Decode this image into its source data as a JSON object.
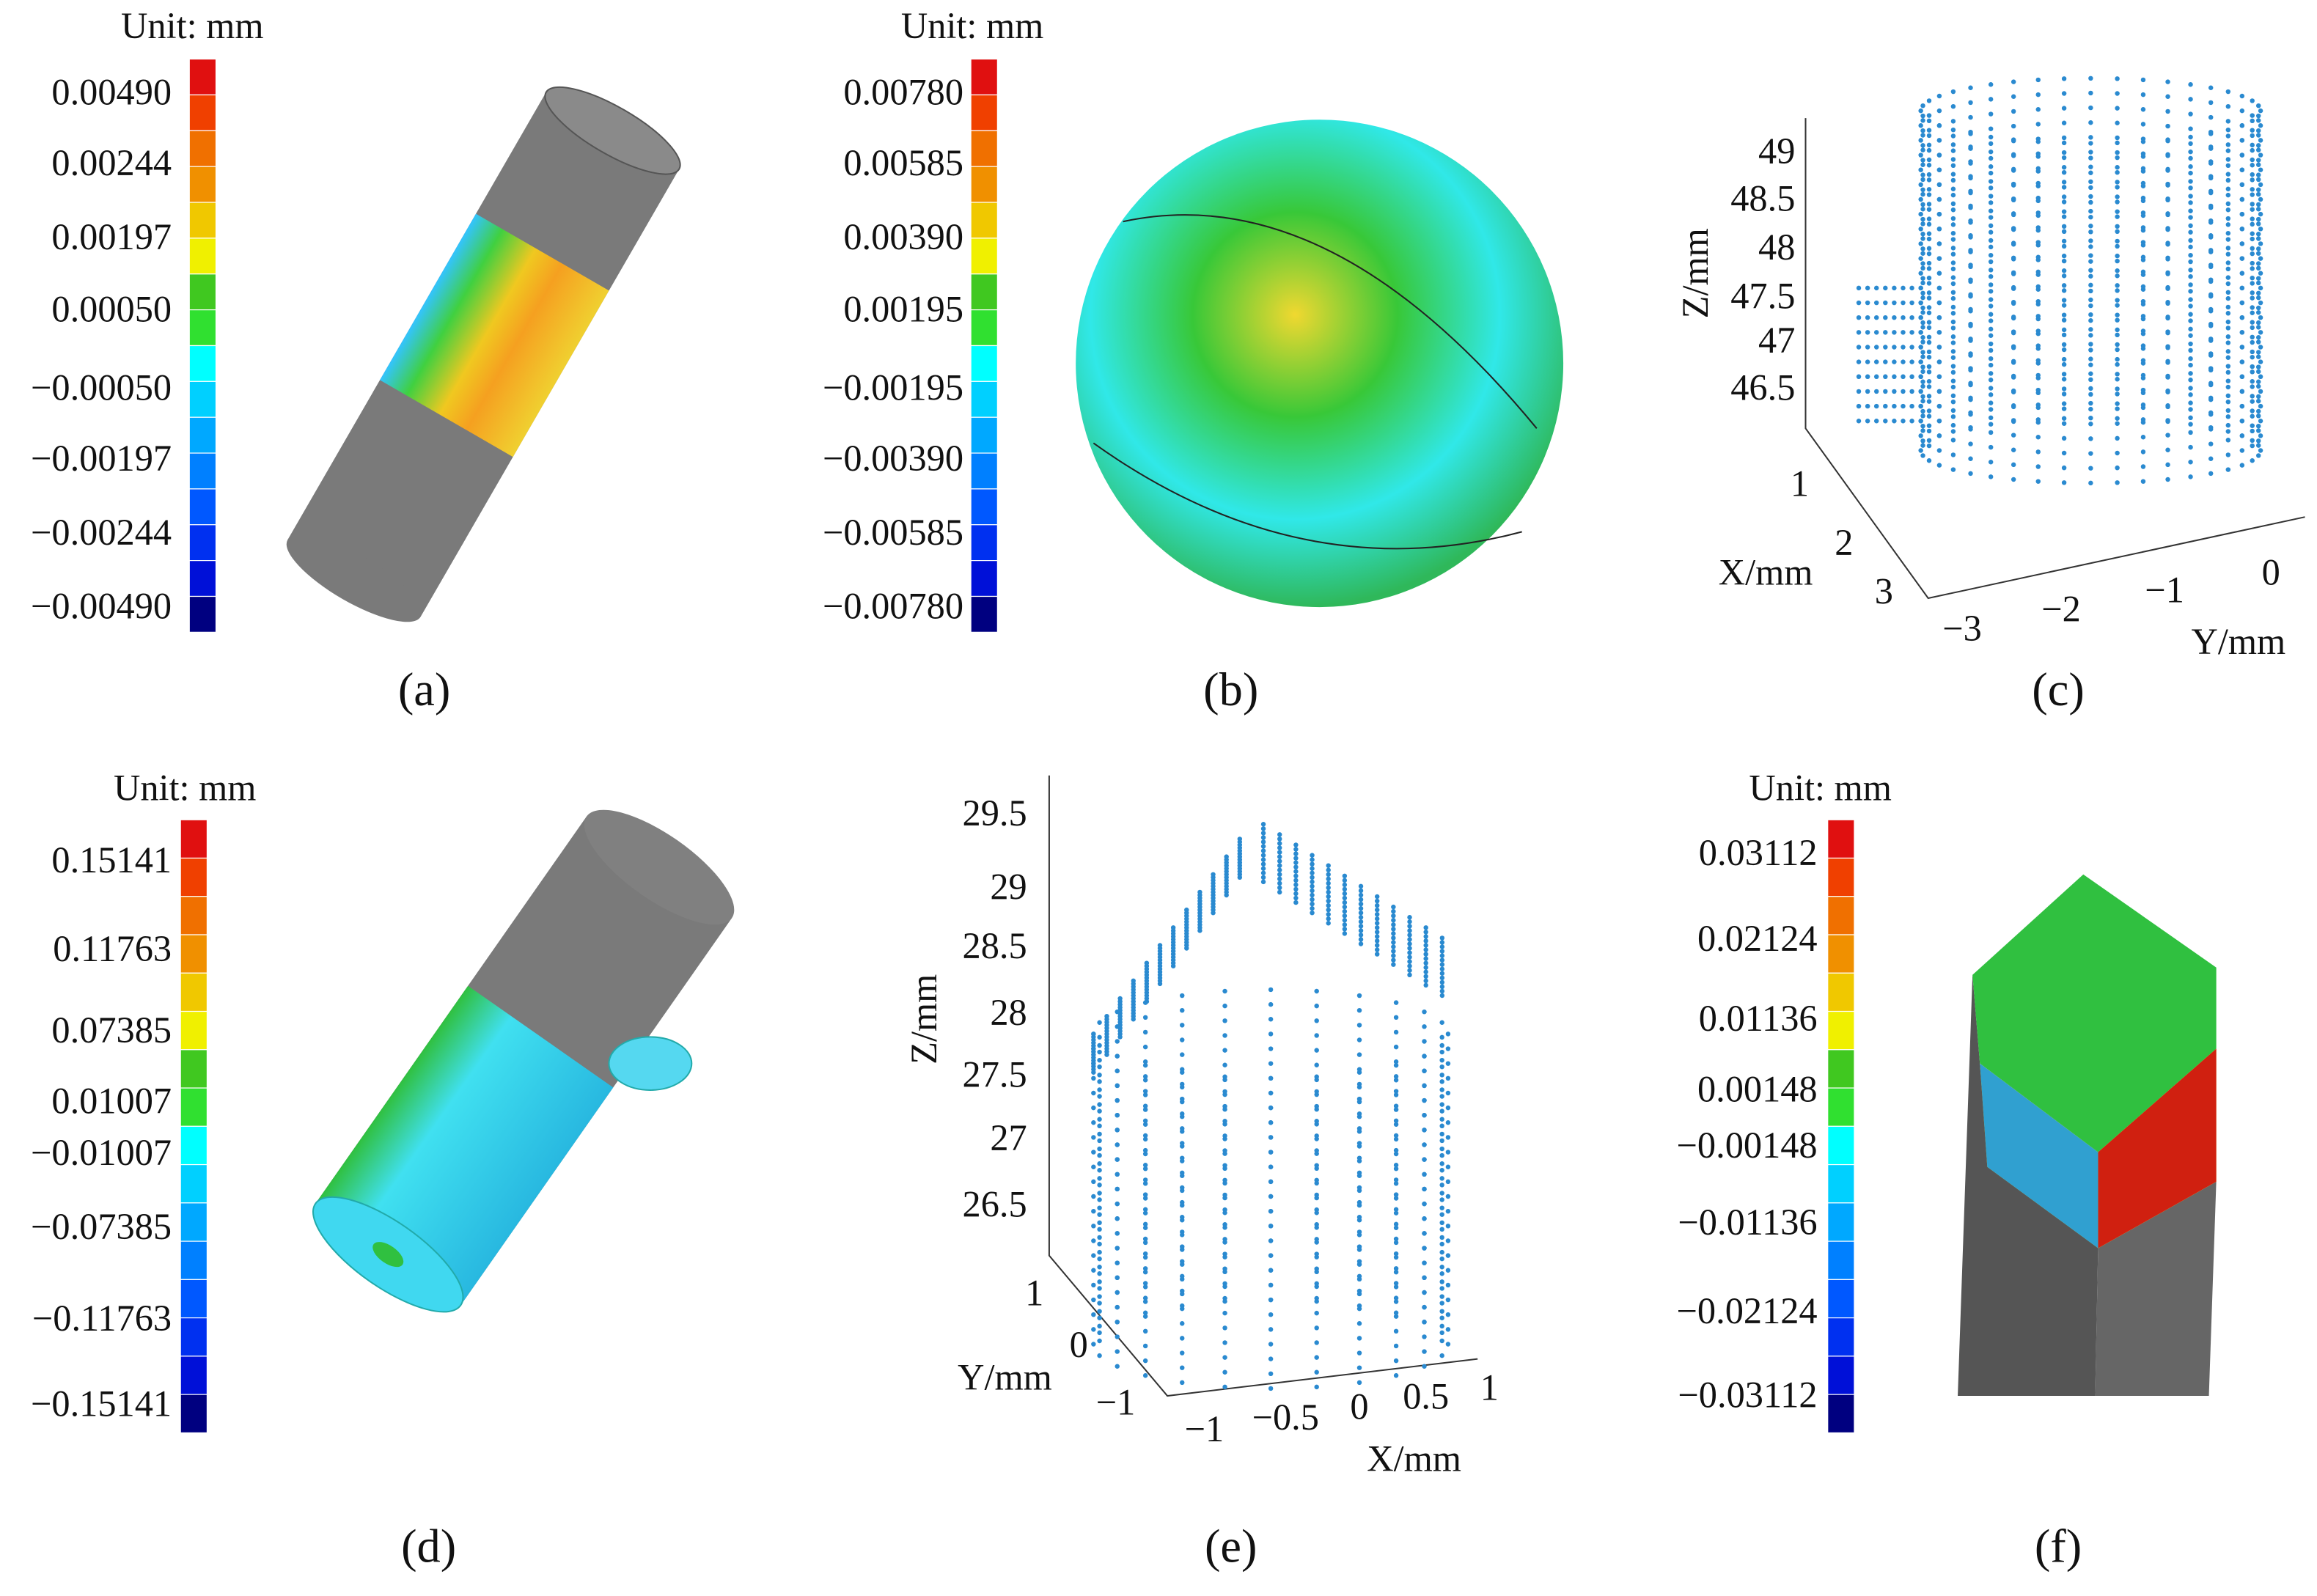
{
  "panels": [
    {
      "label": "(a)",
      "unit": "Unit: mm",
      "ticks": [
        "0.00490",
        "0.00244",
        "0.00197",
        "0.00050",
        "−0.00050",
        "−0.00197",
        "−0.00244",
        "−0.00490"
      ]
    },
    {
      "label": "(b)",
      "unit": "Unit: mm",
      "ticks": [
        "0.00780",
        "0.00585",
        "0.00390",
        "0.00195",
        "−0.00195",
        "−0.00390",
        "−0.00585",
        "−0.00780"
      ]
    },
    {
      "label": "(c)",
      "z_label": "Z/mm",
      "z_ticks": [
        "49",
        "48.5",
        "48",
        "47.5",
        "47",
        "46.5"
      ],
      "x_label": "X/mm",
      "x_ticks": [
        "1",
        "2",
        "3"
      ],
      "y_label": "Y/mm",
      "y_ticks": [
        "−3",
        "−2",
        "−1",
        "0"
      ]
    },
    {
      "label": "(d)",
      "unit": "Unit: mm",
      "ticks": [
        "0.15141",
        "0.11763",
        "0.07385",
        "0.01007",
        "−0.01007",
        "−0.07385",
        "−0.11763",
        "−0.15141"
      ]
    },
    {
      "label": "(e)",
      "z_label": "Z/mm",
      "z_ticks": [
        "29.5",
        "29",
        "28.5",
        "28",
        "27.5",
        "27",
        "26.5"
      ],
      "y_label": "Y/mm",
      "y_ticks": [
        "1",
        "0",
        "−1"
      ],
      "x_label": "X/mm",
      "x_ticks": [
        "−1",
        "−0.5",
        "0",
        "0.5",
        "1"
      ]
    },
    {
      "label": "(f)",
      "unit": "Unit: mm",
      "ticks": [
        "0.03112",
        "0.02124",
        "0.01136",
        "0.00148",
        "−0.00148",
        "−0.01136",
        "−0.02124",
        "−0.03112"
      ]
    }
  ]
}
